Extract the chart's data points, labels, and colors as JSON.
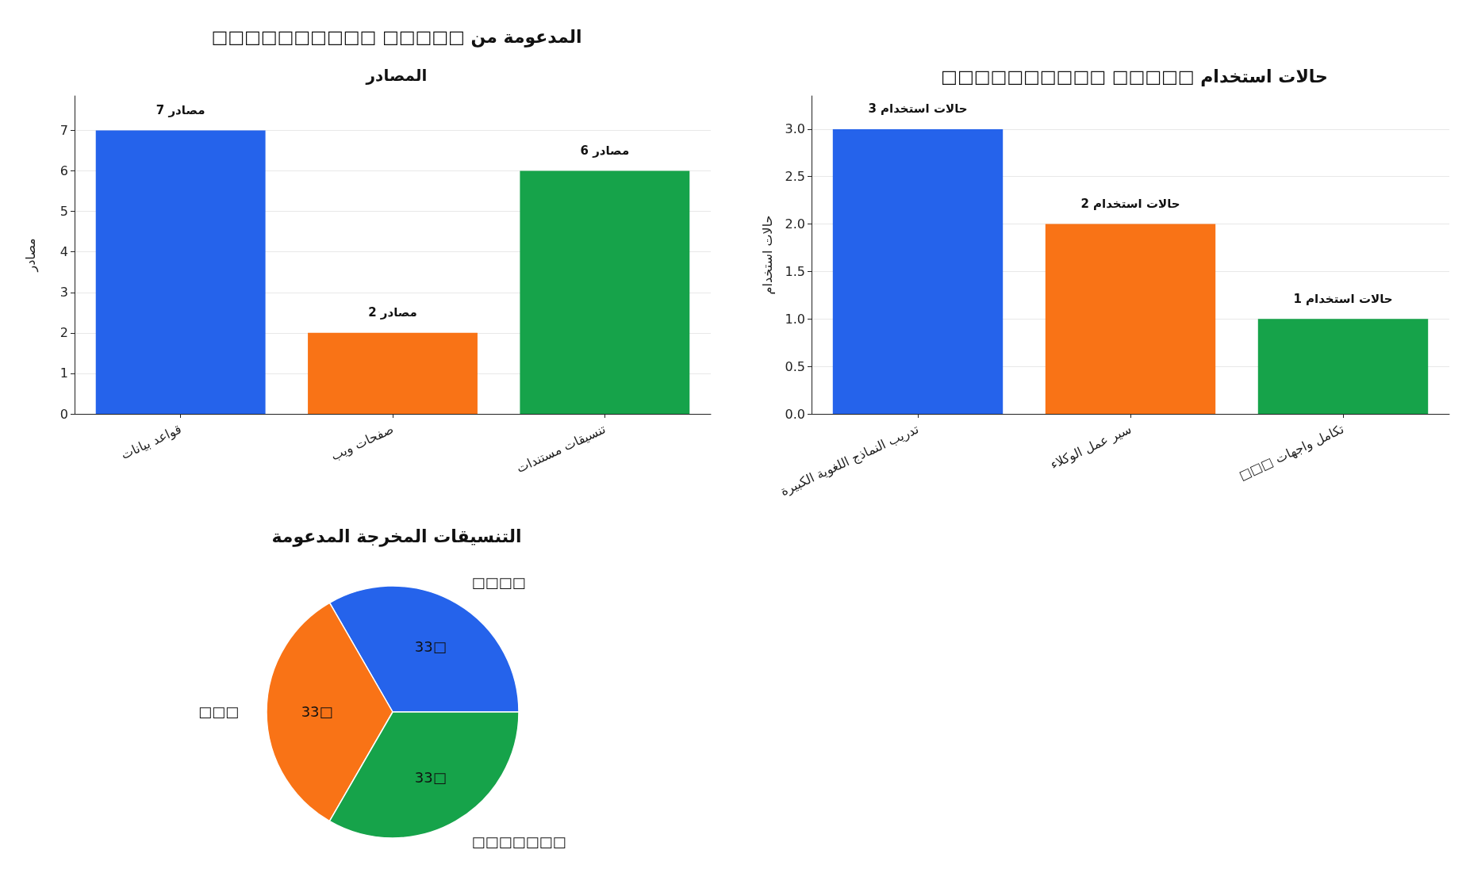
{
  "chart_data": [
    {
      "type": "bar",
      "title": "□□□□□□□□□□ □□□□□ المدعومة من",
      "subtitle": "المصادر",
      "ylabel": "مصادر",
      "categories": [
        "قواعد بيانات",
        "صفحات ويب",
        "تنسيقات مستندات"
      ],
      "values": [
        7,
        2,
        6
      ],
      "colors": [
        "#2563eb",
        "#f97316",
        "#16a34a"
      ],
      "value_labels": [
        "7 مصادر",
        "2 مصادر",
        "6 مصادر"
      ],
      "ylim": [
        0,
        7.85
      ],
      "yticks": [
        0,
        1,
        2,
        3,
        4,
        5,
        6,
        7
      ],
      "grid": "y"
    },
    {
      "type": "bar",
      "title": "□□□□□□□□□□ □□□□□ حالات استخدام",
      "ylabel": "حالات استخدام",
      "categories": [
        "تدريب النماذج اللغوية الكبيرة",
        "سير عمل الوكلاء",
        "□□□ تكامل واجهات"
      ],
      "values": [
        3,
        2,
        1
      ],
      "colors": [
        "#2563eb",
        "#f97316",
        "#16a34a"
      ],
      "value_labels": [
        "3 حالات استخدام",
        "2 حالات استخدام",
        "1 حالات استخدام"
      ],
      "ylim": [
        0,
        3.35
      ],
      "yticks": [
        {
          "value": 0,
          "label": "0.0"
        },
        0.5,
        {
          "value": 1,
          "label": "1.0"
        },
        1.5,
        {
          "value": 2,
          "label": "2.0"
        },
        2.5,
        {
          "value": 3,
          "label": "3.0"
        }
      ],
      "grid": "y"
    },
    {
      "type": "pie",
      "title": "التنسيقات المخرجة المدعومة",
      "categories": [
        "□□□□",
        "□□□",
        "□□□□□□□"
      ],
      "values": [
        33.33,
        33.33,
        33.34
      ],
      "colors": [
        "#2563eb",
        "#f97316",
        "#16a34a"
      ],
      "value_labels": [
        "33□",
        "33□",
        "33□"
      ]
    }
  ]
}
